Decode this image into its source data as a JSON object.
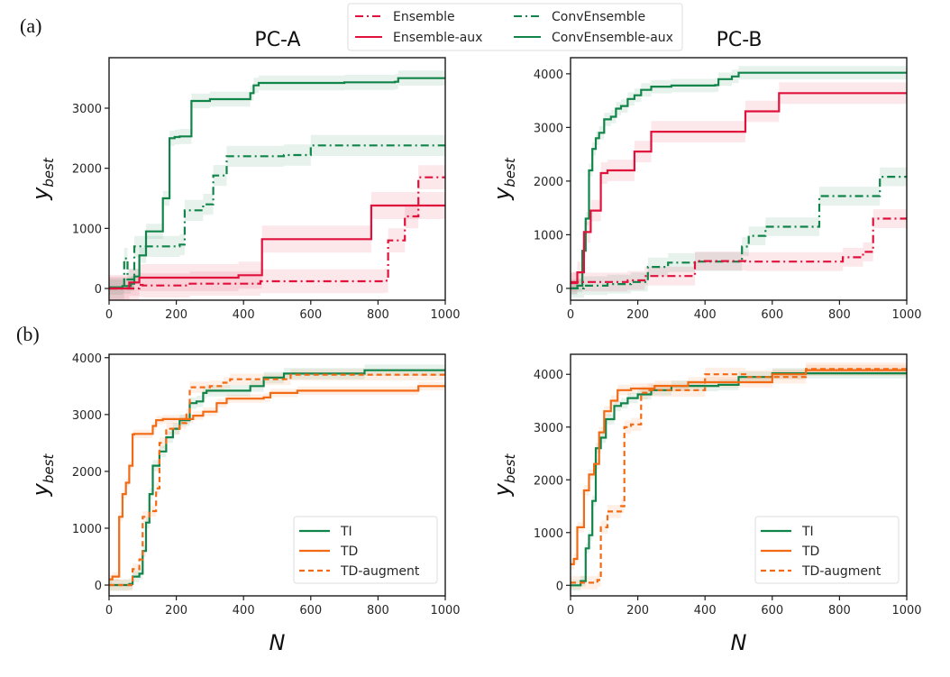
{
  "panel_labels": [
    "(a)",
    "(b)"
  ],
  "column_titles": [
    "PC-A",
    "PC-B"
  ],
  "colors": {
    "Ensemble": "#e0123c",
    "Ensemble-aux": "#e0123c",
    "ConvEnsemble": "#11844a",
    "ConvEnsemble-aux": "#11844a",
    "TI": "#11844a",
    "TD": "#f26a14",
    "TD-augment": "#f26a14"
  },
  "top_legend": [
    {
      "label": "Ensemble",
      "style": "dashdot",
      "series": "Ensemble"
    },
    {
      "label": "ConvEnsemble",
      "style": "dashdot",
      "series": "ConvEnsemble"
    },
    {
      "label": "Ensemble-aux",
      "style": "solid",
      "series": "Ensemble-aux"
    },
    {
      "label": "ConvEnsemble-aux",
      "style": "solid",
      "series": "ConvEnsemble-aux"
    }
  ],
  "chart_data": [
    {
      "id": "a-pca",
      "type": "line",
      "step": true,
      "title": "PC-A",
      "xlabel": "",
      "ylabel": "y_best",
      "xlim": [
        0,
        1000
      ],
      "ylim": [
        -195,
        3840
      ],
      "xticks": [
        0,
        200,
        400,
        600,
        800,
        1000
      ],
      "yticks": [
        0,
        1000,
        2000,
        3000
      ],
      "grid": false,
      "legend": "none",
      "series": [
        {
          "name": "ConvEnsemble-aux",
          "style": "solid",
          "band": 250,
          "x": [
            0,
            40,
            65,
            75,
            90,
            110,
            160,
            180,
            195,
            210,
            245,
            300,
            420,
            430,
            445,
            700,
            850,
            860,
            1000
          ],
          "y": [
            20,
            40,
            80,
            200,
            550,
            950,
            1500,
            2500,
            2520,
            2530,
            3120,
            3150,
            3250,
            3380,
            3420,
            3430,
            3440,
            3500,
            3510
          ]
        },
        {
          "name": "ConvEnsemble",
          "style": "dashdot",
          "band": 350,
          "x": [
            0,
            45,
            55,
            75,
            95,
            210,
            225,
            280,
            310,
            350,
            420,
            520,
            600,
            1000
          ],
          "y": [
            0,
            500,
            150,
            700,
            700,
            730,
            1300,
            1400,
            1880,
            2200,
            2200,
            2220,
            2380,
            2380
          ]
        },
        {
          "name": "Ensemble-aux",
          "style": "solid",
          "band": 450,
          "x": [
            0,
            60,
            90,
            385,
            455,
            780,
            1000
          ],
          "y": [
            0,
            100,
            180,
            220,
            820,
            1380,
            1380
          ]
        },
        {
          "name": "Ensemble",
          "style": "dashdot",
          "band": 400,
          "x": [
            0,
            90,
            100,
            200,
            240,
            450,
            820,
            830,
            880,
            920,
            1000
          ],
          "y": [
            0,
            60,
            50,
            50,
            80,
            120,
            130,
            800,
            1200,
            1850,
            1850
          ]
        }
      ]
    },
    {
      "id": "a-pcb",
      "type": "line",
      "step": true,
      "title": "PC-B",
      "xlabel": "",
      "ylabel": "y_best",
      "xlim": [
        0,
        1000
      ],
      "ylim": [
        -220,
        4300
      ],
      "xticks": [
        0,
        200,
        400,
        600,
        800,
        1000
      ],
      "yticks": [
        0,
        1000,
        2000,
        3000,
        4000
      ],
      "grid": false,
      "legend": "none",
      "series": [
        {
          "name": "ConvEnsemble-aux",
          "style": "solid",
          "band": 250,
          "x": [
            0,
            20,
            35,
            45,
            55,
            65,
            75,
            85,
            100,
            120,
            135,
            150,
            170,
            190,
            210,
            240,
            300,
            430,
            440,
            480,
            500,
            1000
          ],
          "y": [
            0,
            50,
            700,
            1300,
            2200,
            2600,
            2800,
            2900,
            3150,
            3200,
            3350,
            3400,
            3530,
            3600,
            3700,
            3760,
            3780,
            3790,
            3900,
            3950,
            4020,
            4020
          ]
        },
        {
          "name": "Ensemble-aux",
          "style": "solid",
          "band": 400,
          "x": [
            0,
            20,
            40,
            60,
            90,
            110,
            190,
            240,
            520,
            620,
            1000
          ],
          "y": [
            100,
            300,
            1050,
            1450,
            2150,
            2200,
            2550,
            2920,
            3300,
            3640,
            3640
          ]
        },
        {
          "name": "ConvEnsemble",
          "style": "dashdot",
          "band": 350,
          "x": [
            0,
            40,
            110,
            180,
            230,
            290,
            370,
            510,
            530,
            580,
            740,
            920,
            1000
          ],
          "y": [
            0,
            50,
            80,
            120,
            400,
            480,
            500,
            780,
            980,
            1150,
            1720,
            2080,
            2080
          ]
        },
        {
          "name": "Ensemble",
          "style": "dashdot",
          "band": 350,
          "x": [
            0,
            40,
            170,
            220,
            370,
            520,
            810,
            870,
            900,
            1000
          ],
          "y": [
            120,
            120,
            150,
            230,
            510,
            500,
            580,
            680,
            1300,
            1340
          ]
        }
      ]
    },
    {
      "id": "b-pca",
      "type": "line",
      "step": true,
      "title": "",
      "xlabel": "N",
      "ylabel": "y_best",
      "xlim": [
        0,
        1000
      ],
      "ylim": [
        -190,
        4060
      ],
      "xticks": [
        0,
        200,
        400,
        600,
        800,
        1000
      ],
      "yticks": [
        0,
        1000,
        2000,
        3000,
        4000
      ],
      "grid": false,
      "legend": "lower-right",
      "legend_entries": [
        {
          "label": "TI",
          "series": "TI",
          "style": "solid"
        },
        {
          "label": "TD",
          "series": "TD",
          "style": "solid"
        },
        {
          "label": "TD-augment",
          "style": "dashed",
          "series": "TD-augment"
        }
      ],
      "series": [
        {
          "name": "TI",
          "style": "solid",
          "band": 200,
          "x": [
            0,
            60,
            70,
            90,
            100,
            110,
            120,
            130,
            150,
            170,
            190,
            210,
            240,
            260,
            280,
            290,
            420,
            460,
            520,
            760,
            1000
          ],
          "y": [
            0,
            20,
            150,
            200,
            600,
            1100,
            1600,
            2100,
            2350,
            2600,
            2750,
            2900,
            3200,
            3230,
            3380,
            3420,
            3500,
            3650,
            3720,
            3780,
            3800
          ]
        },
        {
          "name": "TD",
          "style": "solid",
          "band": 150,
          "x": [
            0,
            10,
            30,
            40,
            50,
            60,
            70,
            75,
            130,
            140,
            160,
            250,
            280,
            320,
            350,
            460,
            480,
            560,
            920,
            1000
          ],
          "y": [
            100,
            150,
            1200,
            1600,
            1800,
            2100,
            2650,
            2660,
            2800,
            2900,
            2920,
            2980,
            3050,
            3200,
            3280,
            3300,
            3380,
            3420,
            3500,
            3520
          ]
        },
        {
          "name": "TD-augment",
          "style": "dashed",
          "band": 200,
          "x": [
            0,
            70,
            90,
            100,
            120,
            140,
            150,
            170,
            210,
            230,
            240,
            300,
            340,
            360,
            500,
            540,
            1000
          ],
          "y": [
            0,
            280,
            450,
            1200,
            1300,
            1700,
            2500,
            2750,
            2850,
            3000,
            3480,
            3500,
            3560,
            3620,
            3620,
            3700,
            3740
          ]
        }
      ]
    },
    {
      "id": "b-pcb",
      "type": "line",
      "step": true,
      "title": "",
      "xlabel": "N",
      "ylabel": "y_best",
      "xlim": [
        0,
        1000
      ],
      "ylim": [
        -200,
        4380
      ],
      "xticks": [
        0,
        200,
        400,
        600,
        800,
        1000
      ],
      "yticks": [
        0,
        1000,
        2000,
        3000,
        4000
      ],
      "grid": false,
      "legend": "lower-right",
      "legend_entries": [
        {
          "label": "TI",
          "series": "TI",
          "style": "solid"
        },
        {
          "label": "TD",
          "series": "TD",
          "style": "solid"
        },
        {
          "label": "TD-augment",
          "style": "dashed",
          "series": "TD-augment"
        }
      ],
      "series": [
        {
          "name": "TI",
          "style": "solid",
          "band": 200,
          "x": [
            0,
            30,
            45,
            55,
            65,
            75,
            90,
            105,
            130,
            150,
            170,
            200,
            240,
            300,
            440,
            500,
            600,
            1000
          ],
          "y": [
            0,
            80,
            700,
            950,
            1600,
            2600,
            2800,
            3150,
            3400,
            3450,
            3550,
            3620,
            3700,
            3780,
            3800,
            3950,
            4020,
            4030
          ]
        },
        {
          "name": "TD",
          "style": "solid",
          "band": 200,
          "x": [
            0,
            10,
            20,
            40,
            55,
            70,
            85,
            100,
            120,
            140,
            180,
            250,
            350,
            600,
            700,
            1000
          ],
          "y": [
            400,
            500,
            1100,
            1800,
            2100,
            2300,
            2900,
            3300,
            3500,
            3700,
            3730,
            3780,
            3850,
            4000,
            4080,
            4100
          ]
        },
        {
          "name": "TD-augment",
          "style": "dashed",
          "band": 250,
          "x": [
            0,
            80,
            90,
            110,
            150,
            160,
            180,
            210,
            230,
            280,
            400,
            520,
            700,
            1000
          ],
          "y": [
            50,
            100,
            1100,
            1400,
            1500,
            3000,
            3050,
            3650,
            3700,
            3700,
            4000,
            3950,
            4100,
            4120
          ]
        }
      ]
    }
  ]
}
